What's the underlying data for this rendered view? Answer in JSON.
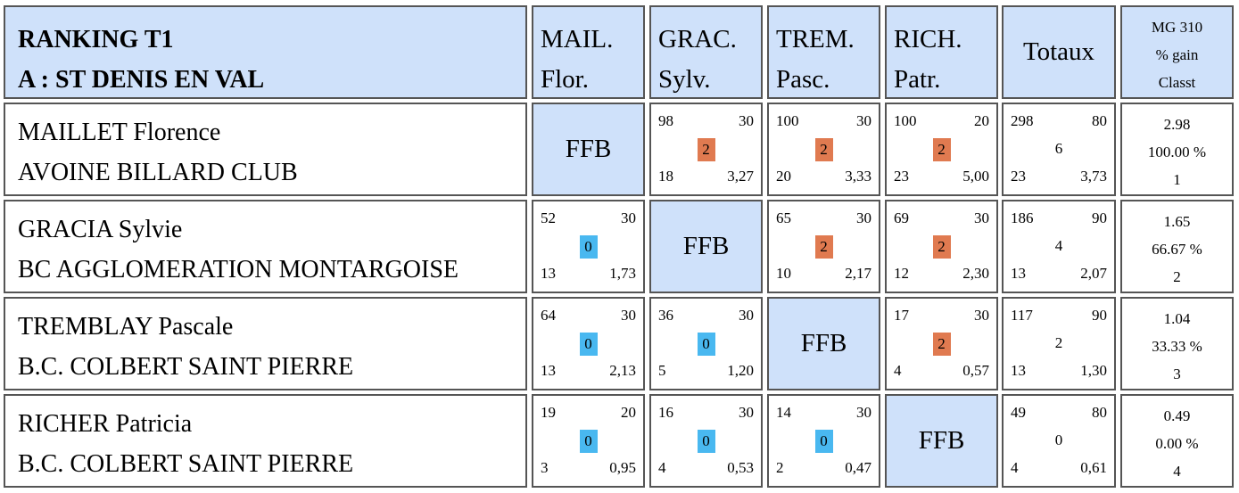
{
  "header": {
    "title_line1": "RANKING T1",
    "title_line2": "A : ST DENIS EN VAL",
    "columns": [
      {
        "l1": "MAIL.",
        "l2": "Flor."
      },
      {
        "l1": "GRAC.",
        "l2": "Sylv."
      },
      {
        "l1": "TREM.",
        "l2": "Pasc."
      },
      {
        "l1": "RICH.",
        "l2": "Patr."
      }
    ],
    "totaux_label": "Totaux",
    "stats_l1": "MG 310",
    "stats_l2": "% gain",
    "stats_l3": "Classt"
  },
  "colors": {
    "header_bg": "#cfe1fa",
    "win_badge": "#e07a50",
    "loss_badge": "#49b8f0",
    "border": "#555555"
  },
  "ffb_label": "FFB",
  "players": [
    {
      "name": "MAILLET Florence",
      "club": "AVOINE BILLARD CLUB",
      "results": [
        null,
        {
          "points": "98",
          "reprises": "30",
          "match_points": "2",
          "series": "18",
          "moyenne": "3,27",
          "outcome": "win"
        },
        {
          "points": "100",
          "reprises": "30",
          "match_points": "2",
          "series": "20",
          "moyenne": "3,33",
          "outcome": "win"
        },
        {
          "points": "100",
          "reprises": "20",
          "match_points": "2",
          "series": "23",
          "moyenne": "5,00",
          "outcome": "win"
        }
      ],
      "totals": {
        "points": "298",
        "reprises": "80",
        "match_points": "6",
        "series": "23",
        "moyenne": "3,73"
      },
      "stats": {
        "mg": "2.98",
        "pct": "100.00 %",
        "rank": "1"
      }
    },
    {
      "name": "GRACIA Sylvie",
      "club": "BC AGGLOMERATION MONTARGOISE",
      "results": [
        {
          "points": "52",
          "reprises": "30",
          "match_points": "0",
          "series": "13",
          "moyenne": "1,73",
          "outcome": "loss"
        },
        null,
        {
          "points": "65",
          "reprises": "30",
          "match_points": "2",
          "series": "10",
          "moyenne": "2,17",
          "outcome": "win"
        },
        {
          "points": "69",
          "reprises": "30",
          "match_points": "2",
          "series": "12",
          "moyenne": "2,30",
          "outcome": "win"
        }
      ],
      "totals": {
        "points": "186",
        "reprises": "90",
        "match_points": "4",
        "series": "13",
        "moyenne": "2,07"
      },
      "stats": {
        "mg": "1.65",
        "pct": "66.67 %",
        "rank": "2"
      }
    },
    {
      "name": "TREMBLAY Pascale",
      "club": "B.C. COLBERT SAINT PIERRE",
      "results": [
        {
          "points": "64",
          "reprises": "30",
          "match_points": "0",
          "series": "13",
          "moyenne": "2,13",
          "outcome": "loss"
        },
        {
          "points": "36",
          "reprises": "30",
          "match_points": "0",
          "series": "5",
          "moyenne": "1,20",
          "outcome": "loss"
        },
        null,
        {
          "points": "17",
          "reprises": "30",
          "match_points": "2",
          "series": "4",
          "moyenne": "0,57",
          "outcome": "win"
        }
      ],
      "totals": {
        "points": "117",
        "reprises": "90",
        "match_points": "2",
        "series": "13",
        "moyenne": "1,30"
      },
      "stats": {
        "mg": "1.04",
        "pct": "33.33 %",
        "rank": "3"
      }
    },
    {
      "name": "RICHER Patricia",
      "club": "B.C. COLBERT SAINT PIERRE",
      "results": [
        {
          "points": "19",
          "reprises": "20",
          "match_points": "0",
          "series": "3",
          "moyenne": "0,95",
          "outcome": "loss"
        },
        {
          "points": "16",
          "reprises": "30",
          "match_points": "0",
          "series": "4",
          "moyenne": "0,53",
          "outcome": "loss"
        },
        {
          "points": "14",
          "reprises": "30",
          "match_points": "0",
          "series": "2",
          "moyenne": "0,47",
          "outcome": "loss"
        },
        null
      ],
      "totals": {
        "points": "49",
        "reprises": "80",
        "match_points": "0",
        "series": "4",
        "moyenne": "0,61"
      },
      "stats": {
        "mg": "0.49",
        "pct": "0.00 %",
        "rank": "4"
      }
    }
  ]
}
